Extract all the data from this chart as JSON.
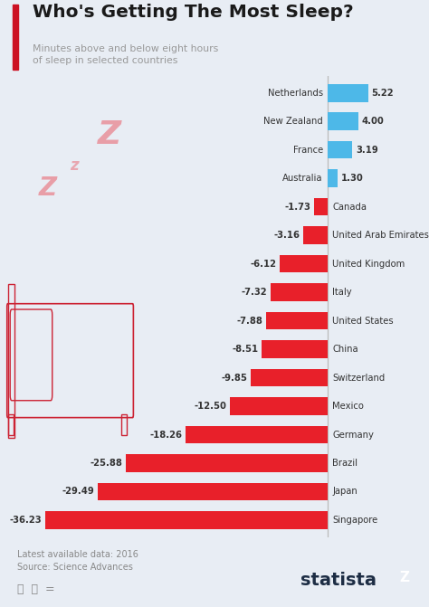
{
  "title": "Who's Getting The Most Sleep?",
  "subtitle": "Minutes above and below eight hours\nof sleep in selected countries",
  "source": "Latest available data: 2016\nSource: Science Advances",
  "countries": [
    "Netherlands",
    "New Zealand",
    "France",
    "Australia",
    "Canada",
    "United Arab Emirates",
    "United Kingdom",
    "Italy",
    "United States",
    "China",
    "Switzerland",
    "Mexico",
    "Germany",
    "Brazil",
    "Japan",
    "Singapore"
  ],
  "values": [
    5.22,
    4.0,
    3.19,
    1.3,
    -1.73,
    -3.16,
    -6.12,
    -7.32,
    -7.88,
    -8.51,
    -9.85,
    -12.5,
    -18.26,
    -25.88,
    -29.49,
    -36.23
  ],
  "bar_color_positive": "#4db8e8",
  "bar_color_negative": "#e8202a",
  "bg_color": "#e8edf4",
  "title_color": "#1a1a1a",
  "subtitle_color": "#999999",
  "title_bar_color": "#cc1122",
  "source_color": "#888888",
  "statista_color": "#1d2d44",
  "label_color": "#333333",
  "zero_line_color": "#bbbbbb"
}
